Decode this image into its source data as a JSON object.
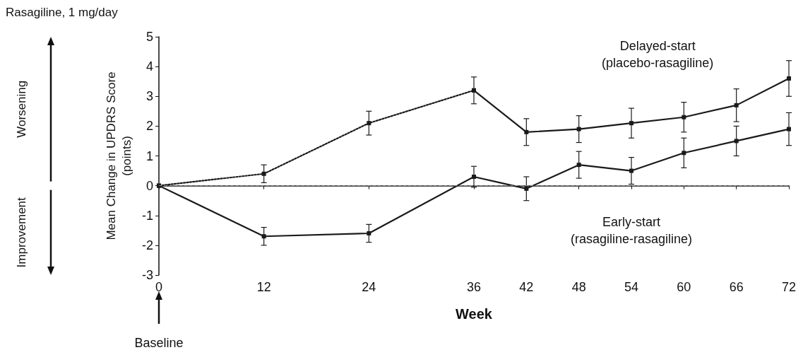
{
  "chart_data": {
    "type": "line",
    "title": "Rasagiline, 1 mg/day",
    "xlabel": "Week",
    "ylabel": "Mean Change in UPDRS Score\n(points)",
    "xlim": [
      0,
      72
    ],
    "xticks": [
      0,
      12,
      24,
      36,
      42,
      48,
      54,
      60,
      66,
      72
    ],
    "ylim": [
      -3,
      5
    ],
    "yticks": [
      -3,
      -2,
      -1,
      0,
      1,
      2,
      3,
      4,
      5
    ],
    "grid": false,
    "marker": "square",
    "series": [
      {
        "color": "#1a1a1a",
        "line_style": "dotted",
        "x": [
          0,
          12,
          24,
          36
        ],
        "values": [
          0,
          0.4,
          2.1,
          3.2
        ],
        "errors": [
          null,
          0.3,
          0.4,
          null
        ]
      },
      {
        "color": "#1a1a1a",
        "line_style": "solid",
        "x": [
          36,
          42,
          48,
          54,
          60,
          66,
          72
        ],
        "values": [
          3.2,
          1.8,
          1.9,
          2.1,
          2.3,
          2.7,
          3.6
        ],
        "errors": [
          0.45,
          0.45,
          0.45,
          0.5,
          0.5,
          0.55,
          0.6
        ]
      },
      {
        "color": "#1a1a1a",
        "line_style": "solid",
        "x": [
          0,
          12,
          24,
          36,
          42,
          48,
          54,
          60,
          66,
          72
        ],
        "values": [
          0,
          -1.7,
          -1.6,
          0.3,
          -0.1,
          0.7,
          0.5,
          1.1,
          1.5,
          1.9
        ],
        "errors": [
          null,
          0.3,
          0.3,
          0.35,
          0.4,
          0.45,
          0.45,
          0.5,
          0.5,
          0.55
        ]
      }
    ],
    "ref_lines": [
      {
        "axis": "y",
        "value": 0,
        "color": "#888888",
        "line_style": "dashed"
      }
    ],
    "annotations": [
      "Delayed-start\n(placebo-rasagiline)",
      "Early-start\n(rasagiline-rasagiline)",
      "Baseline",
      "Worsening",
      "Improvement"
    ]
  }
}
